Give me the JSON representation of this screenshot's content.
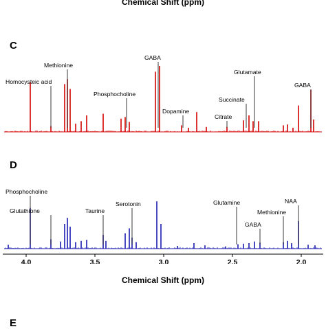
{
  "top_axis_title": "Chemical Shift (ppm)",
  "bottom_axis_title": "Chemical Shift (ppm)",
  "next_panel_letter": "E",
  "chart_data": [
    {
      "type": "line",
      "panel": "C",
      "color": "#d40000",
      "xlim": [
        4.15,
        1.85
      ],
      "xaxis_reversed": true,
      "peaks": [
        {
          "x": 3.97,
          "h": 0.6
        },
        {
          "x": 3.82,
          "h": 0.07
        },
        {
          "x": 3.72,
          "h": 0.58
        },
        {
          "x": 3.7,
          "h": 0.64
        },
        {
          "x": 3.68,
          "h": 0.52
        },
        {
          "x": 3.64,
          "h": 0.1
        },
        {
          "x": 3.6,
          "h": 0.13
        },
        {
          "x": 3.56,
          "h": 0.2
        },
        {
          "x": 3.44,
          "h": 0.22
        },
        {
          "x": 3.31,
          "h": 0.16
        },
        {
          "x": 3.28,
          "h": 0.18
        },
        {
          "x": 3.25,
          "h": 0.12
        },
        {
          "x": 3.06,
          "h": 0.73
        },
        {
          "x": 3.03,
          "h": 0.8
        },
        {
          "x": 2.87,
          "h": 0.08
        },
        {
          "x": 2.82,
          "h": 0.05
        },
        {
          "x": 2.76,
          "h": 0.24
        },
        {
          "x": 2.69,
          "h": 0.06
        },
        {
          "x": 2.54,
          "h": 0.06
        },
        {
          "x": 2.42,
          "h": 0.14
        },
        {
          "x": 2.38,
          "h": 0.2
        },
        {
          "x": 2.35,
          "h": 0.13
        },
        {
          "x": 2.31,
          "h": 0.13
        },
        {
          "x": 2.13,
          "h": 0.08
        },
        {
          "x": 2.1,
          "h": 0.09
        },
        {
          "x": 2.06,
          "h": 0.05
        },
        {
          "x": 2.02,
          "h": 0.32
        },
        {
          "x": 1.93,
          "h": 0.51
        },
        {
          "x": 1.91,
          "h": 0.15
        }
      ],
      "annotations": [
        {
          "label": "Homocysteic acid",
          "x": 3.82
        },
        {
          "label": "Methionine",
          "x": 3.7
        },
        {
          "label": "Phosphocholine",
          "x": 3.27
        },
        {
          "label": "GABA",
          "x": 3.04
        },
        {
          "label": "Dopamine",
          "x": 2.86
        },
        {
          "label": "Citrate",
          "x": 2.54
        },
        {
          "label": "Succinate",
          "x": 2.4
        },
        {
          "label": "Glutamate",
          "x": 2.34
        },
        {
          "label": "GABA",
          "x": 1.93
        }
      ]
    },
    {
      "type": "line",
      "panel": "D",
      "color": "#1a1ab0",
      "xlim": [
        4.15,
        1.85
      ],
      "xaxis_reversed": true,
      "ticks": [
        4.0,
        3.5,
        3.0,
        2.5,
        2.0
      ],
      "tick_labels": [
        "4.0",
        "3.5",
        "3.0",
        "2.5",
        "2.0"
      ],
      "peaks": [
        {
          "x": 4.13,
          "h": 0.07
        },
        {
          "x": 3.97,
          "h": 0.74
        },
        {
          "x": 3.82,
          "h": 0.17
        },
        {
          "x": 3.75,
          "h": 0.13
        },
        {
          "x": 3.72,
          "h": 0.45
        },
        {
          "x": 3.7,
          "h": 0.56
        },
        {
          "x": 3.68,
          "h": 0.4
        },
        {
          "x": 3.64,
          "h": 0.12
        },
        {
          "x": 3.6,
          "h": 0.14
        },
        {
          "x": 3.56,
          "h": 0.16
        },
        {
          "x": 3.44,
          "h": 0.25
        },
        {
          "x": 3.42,
          "h": 0.14
        },
        {
          "x": 3.28,
          "h": 0.28
        },
        {
          "x": 3.25,
          "h": 0.37
        },
        {
          "x": 3.23,
          "h": 0.2
        },
        {
          "x": 3.2,
          "h": 0.12
        },
        {
          "x": 3.05,
          "h": 0.86
        },
        {
          "x": 3.02,
          "h": 0.45
        },
        {
          "x": 2.9,
          "h": 0.05
        },
        {
          "x": 2.78,
          "h": 0.1
        },
        {
          "x": 2.7,
          "h": 0.06
        },
        {
          "x": 2.55,
          "h": 0.04
        },
        {
          "x": 2.46,
          "h": 0.08
        },
        {
          "x": 2.42,
          "h": 0.09
        },
        {
          "x": 2.38,
          "h": 0.1
        },
        {
          "x": 2.34,
          "h": 0.13
        },
        {
          "x": 2.3,
          "h": 0.11
        },
        {
          "x": 2.13,
          "h": 0.12
        },
        {
          "x": 2.1,
          "h": 0.14
        },
        {
          "x": 2.07,
          "h": 0.1
        },
        {
          "x": 2.02,
          "h": 0.5
        },
        {
          "x": 1.95,
          "h": 0.07
        },
        {
          "x": 1.9,
          "h": 0.06
        }
      ],
      "annotations": [
        {
          "label": "Phosphocholine",
          "x": 3.97
        },
        {
          "label": "Glutathione",
          "x": 3.82
        },
        {
          "label": "Taurine",
          "x": 3.44
        },
        {
          "label": "Serotonin",
          "x": 3.23
        },
        {
          "label": "Glutamine",
          "x": 2.47
        },
        {
          "label": "GABA",
          "x": 2.3
        },
        {
          "label": "Methionine",
          "x": 2.13
        },
        {
          "label": "NAA",
          "x": 2.02
        }
      ]
    }
  ]
}
